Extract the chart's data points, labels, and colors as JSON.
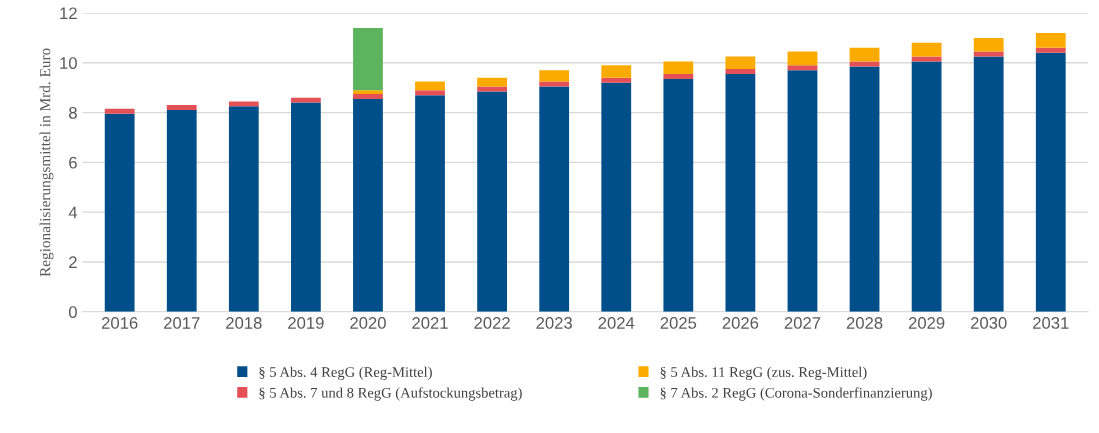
{
  "chart_data": {
    "type": "bar",
    "stacked": true,
    "ylabel": "Regionalisierungsmittel in Mrd. Euro",
    "categories": [
      "2016",
      "2017",
      "2018",
      "2019",
      "2020",
      "2021",
      "2022",
      "2023",
      "2024",
      "2025",
      "2026",
      "2027",
      "2028",
      "2029",
      "2030",
      "2031"
    ],
    "series": [
      {
        "name": "§ 5 Abs. 4 RegG (Reg-Mittel)",
        "color": "#004f8a",
        "values": [
          7.95,
          8.1,
          8.25,
          8.4,
          8.55,
          8.7,
          8.85,
          9.05,
          9.2,
          9.35,
          9.55,
          9.7,
          9.85,
          10.05,
          10.25,
          10.4
        ]
      },
      {
        "name": "§ 5 Abs. 7 und 8 RegG (Aufstockungsbetrag)",
        "color": "#e35157",
        "values": [
          0.2,
          0.2,
          0.2,
          0.2,
          0.2,
          0.2,
          0.2,
          0.2,
          0.2,
          0.2,
          0.2,
          0.2,
          0.2,
          0.2,
          0.2,
          0.2
        ]
      },
      {
        "name": "§ 5 Abs. 11 RegG (zus. Reg-Mittel)",
        "color": "#fbaa00",
        "values": [
          0,
          0,
          0,
          0,
          0.15,
          0.35,
          0.35,
          0.45,
          0.5,
          0.5,
          0.5,
          0.55,
          0.55,
          0.55,
          0.55,
          0.6
        ]
      },
      {
        "name": "§ 7 Abs. 2 RegG (Corona-Sonderfinanzierung)",
        "color": "#5db45f",
        "values": [
          0,
          0,
          0,
          0,
          2.5,
          0,
          0,
          0,
          0,
          0,
          0,
          0,
          0,
          0,
          0,
          0
        ]
      }
    ],
    "ylim": [
      0,
      12
    ],
    "yticks": [
      0,
      2,
      4,
      6,
      8,
      10,
      12
    ],
    "grid": "y",
    "legend": "bottom"
  }
}
